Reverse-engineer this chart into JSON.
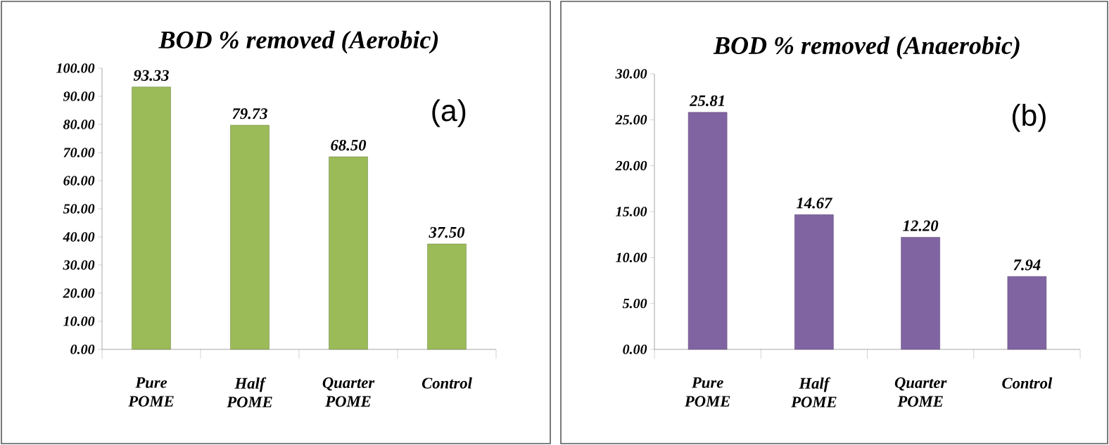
{
  "chart_data": [
    {
      "type": "bar",
      "title": "BOD % removed (Aerobic)",
      "categories": [
        "Pure POME",
        "Half POME",
        "Quarter POME",
        "Control"
      ],
      "values": [
        93.33,
        79.73,
        68.5,
        37.5
      ],
      "value_labels": [
        "93.33",
        "79.73",
        "68.50",
        "37.50"
      ],
      "color": "#9bbb59",
      "ylim": [
        0,
        100
      ],
      "yticks": [
        {
          "value": 0,
          "label": "0.00"
        },
        {
          "value": 10,
          "label": "10.00"
        },
        {
          "value": 20,
          "label": "20.00"
        },
        {
          "value": 30,
          "label": "30.00"
        },
        {
          "value": 40,
          "label": "40.00"
        },
        {
          "value": 50,
          "label": "50.00"
        },
        {
          "value": 60,
          "label": "60.00"
        },
        {
          "value": 70,
          "label": "70.00"
        },
        {
          "value": 80,
          "label": "80.00"
        },
        {
          "value": 90,
          "label": "90.00"
        },
        {
          "value": 100,
          "label": "100.00"
        }
      ],
      "annotations": [
        "(a)"
      ]
    },
    {
      "type": "bar",
      "title": "BOD % removed (Anaerobic)",
      "categories": [
        "Pure POME",
        "Half POME",
        "Quarter POME",
        "Control"
      ],
      "values": [
        25.81,
        14.67,
        12.2,
        7.94
      ],
      "value_labels": [
        "25.81",
        "14.67",
        "12.20",
        "7.94"
      ],
      "color": "#8064a2",
      "ylim": [
        0,
        30
      ],
      "yticks": [
        {
          "value": 0,
          "label": "0.00"
        },
        {
          "value": 5,
          "label": "5.00"
        },
        {
          "value": 10,
          "label": "10.00"
        },
        {
          "value": 15,
          "label": "15.00"
        },
        {
          "value": 20,
          "label": "20.00"
        },
        {
          "value": 25,
          "label": "25.00"
        },
        {
          "value": 30,
          "label": "30.00"
        }
      ],
      "annotations": [
        "(b)"
      ]
    }
  ]
}
